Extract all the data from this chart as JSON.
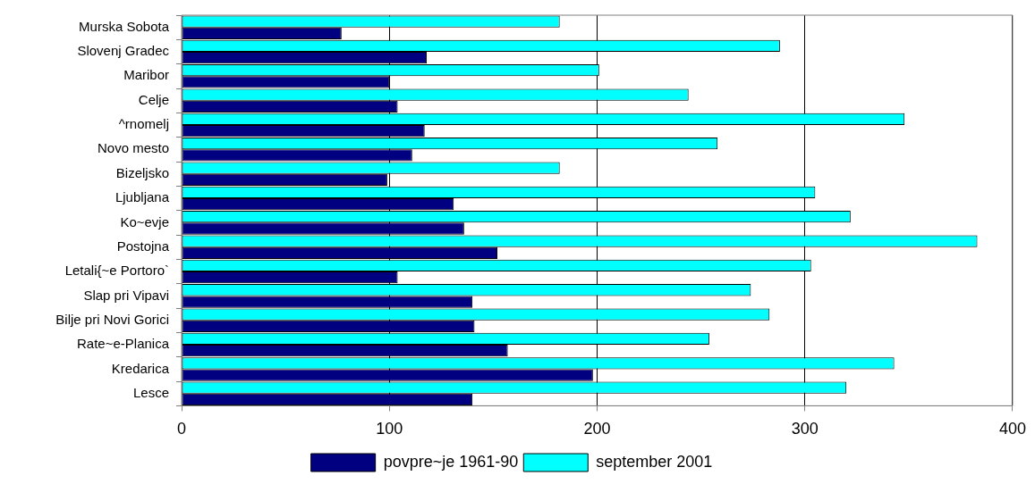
{
  "chart_data": {
    "type": "bar",
    "orientation": "horizontal",
    "categories": [
      "Murska Sobota",
      "Slovenj Gradec",
      "Maribor",
      "Celje",
      "^rnomelj",
      "Novo mesto",
      "Bizeljsko",
      "Ljubljana",
      "Ko~evje",
      "Postojna",
      "Letali{~e Portoro`",
      "Slap pri Vipavi",
      "Bilje pri Novi Gorici",
      "Rate~e-Planica",
      "Kredarica",
      "Lesce"
    ],
    "series": [
      {
        "name": "povpre~je 1961-90",
        "color": "#000080",
        "values": [
          77,
          118,
          100,
          104,
          117,
          111,
          99,
          131,
          136,
          152,
          104,
          140,
          141,
          157,
          198,
          140
        ]
      },
      {
        "name": "september 2001",
        "color": "#00ffff",
        "values": [
          182,
          288,
          201,
          244,
          348,
          258,
          182,
          305,
          322,
          383,
          303,
          274,
          283,
          254,
          343,
          320
        ]
      }
    ],
    "xlim": [
      0,
      400
    ],
    "xticks": [
      0,
      100,
      200,
      300,
      400
    ],
    "grid": "x",
    "legend": "bottom"
  }
}
